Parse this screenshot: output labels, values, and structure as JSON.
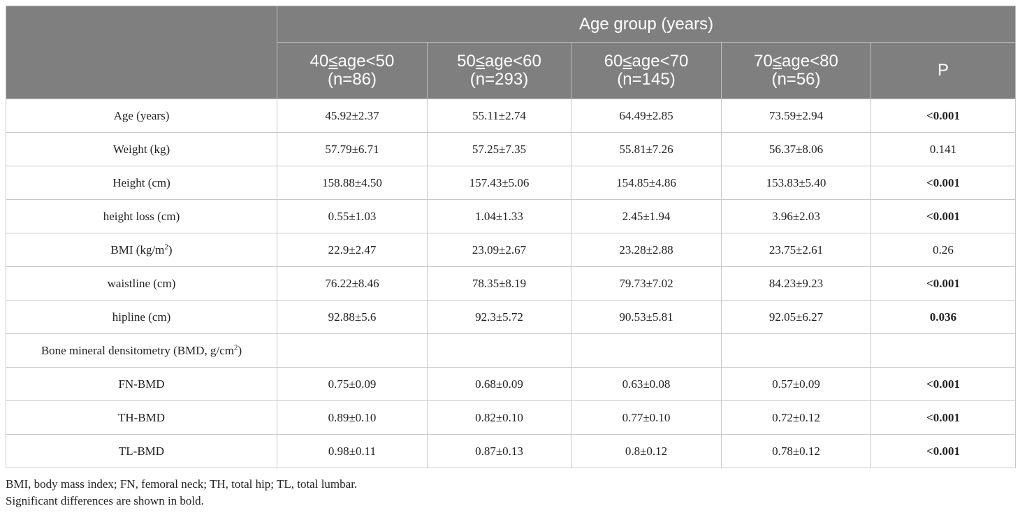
{
  "header": {
    "group_title": "Age group (years)",
    "columns": [
      {
        "range_prefix": "40",
        "range_rel": "≤",
        "range_suffix": "age<50",
        "n": "(n=86)"
      },
      {
        "range_prefix": "50",
        "range_rel": "≤",
        "range_suffix": "age<60",
        "n": "(n=293)"
      },
      {
        "range_prefix": "60",
        "range_rel": "≤",
        "range_suffix": "age<70",
        "n": "(n=145)"
      },
      {
        "range_prefix": "70",
        "range_rel": "≤",
        "range_suffix": "age<80",
        "n": "(n=56)"
      }
    ],
    "p_label": "P"
  },
  "rows": [
    {
      "label": "Age (years)",
      "label_sup": "",
      "label_after": "",
      "values": [
        "45.92±2.37",
        "55.11±2.74",
        "64.49±2.85",
        "73.59±2.94"
      ],
      "p": "<0.001",
      "p_bold": true
    },
    {
      "label": "Weight (kg)",
      "label_sup": "",
      "label_after": "",
      "values": [
        "57.79±6.71",
        "57.25±7.35",
        "55.81±7.26",
        "56.37±8.06"
      ],
      "p": "0.141",
      "p_bold": false
    },
    {
      "label": "Height (cm)",
      "label_sup": "",
      "label_after": "",
      "values": [
        "158.88±4.50",
        "157.43±5.06",
        "154.85±4.86",
        "153.83±5.40"
      ],
      "p": "<0.001",
      "p_bold": true
    },
    {
      "label": "height loss (cm)",
      "label_sup": "",
      "label_after": "",
      "values": [
        "0.55±1.03",
        "1.04±1.33",
        "2.45±1.94",
        "3.96±2.03"
      ],
      "p": "<0.001",
      "p_bold": true
    },
    {
      "label": "BMI (kg/m",
      "label_sup": "2",
      "label_after": ")",
      "values": [
        "22.9±2.47",
        "23.09±2.67",
        "23.28±2.88",
        "23.75±2.61"
      ],
      "p": "0.26",
      "p_bold": false
    },
    {
      "label": "waistline (cm)",
      "label_sup": "",
      "label_after": "",
      "values": [
        "76.22±8.46",
        "78.35±8.19",
        "79.73±7.02",
        "84.23±9.23"
      ],
      "p": "<0.001",
      "p_bold": true
    },
    {
      "label": "hipline (cm)",
      "label_sup": "",
      "label_after": "",
      "values": [
        "92.88±5.6",
        "92.3±5.72",
        "90.53±5.81",
        "92.05±6.27"
      ],
      "p": "0.036",
      "p_bold": true
    },
    {
      "label": "Bone mineral densitometry (BMD, g/cm",
      "label_sup": "2",
      "label_after": ")",
      "values": [
        "",
        "",
        "",
        ""
      ],
      "p": "",
      "p_bold": false
    },
    {
      "label": "FN-BMD",
      "label_sup": "",
      "label_after": "",
      "values": [
        "0.75±0.09",
        "0.68±0.09",
        "0.63±0.08",
        "0.57±0.09"
      ],
      "p": "<0.001",
      "p_bold": true
    },
    {
      "label": "TH-BMD",
      "label_sup": "",
      "label_after": "",
      "values": [
        "0.89±0.10",
        "0.82±0.10",
        "0.77±0.10",
        "0.72±0.12"
      ],
      "p": "<0.001",
      "p_bold": true
    },
    {
      "label": "TL-BMD",
      "label_sup": "",
      "label_after": "",
      "values": [
        "0.98±0.11",
        "0.87±0.13",
        "0.8±0.12",
        "0.78±0.12"
      ],
      "p": "<0.001",
      "p_bold": true
    }
  ],
  "notes": [
    "BMI, body mass index; FN, femoral neck; TH, total hip; TL, total lumbar.",
    "Significant differences are shown in bold."
  ]
}
